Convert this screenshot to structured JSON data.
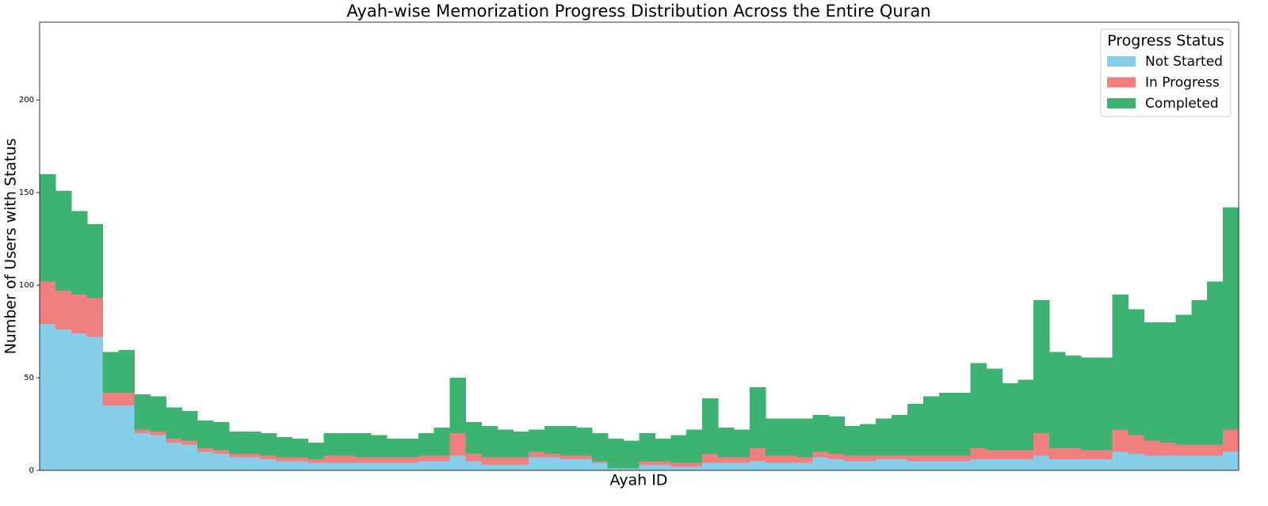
{
  "chart_data": {
    "type": "stacked_bar",
    "title": "Ayah-wise Memorization Progress Distribution Across the Entire Quran",
    "x_label": "Ayah ID",
    "y_label": "Number of Users with Status",
    "categories": [
      null,
      null,
      null,
      null,
      null,
      null,
      null,
      null,
      null,
      null,
      null,
      null,
      null,
      null,
      null,
      null,
      null,
      null,
      null,
      null,
      null,
      null,
      null,
      null,
      null,
      null,
      null,
      null,
      null,
      null,
      null,
      null,
      null,
      null,
      null,
      null,
      null,
      null,
      null,
      null,
      null,
      null,
      null,
      null,
      null,
      null,
      null,
      null,
      null,
      null,
      null,
      null,
      null,
      null,
      null,
      null,
      null,
      null,
      null,
      null,
      null,
      null,
      null,
      null,
      null,
      null,
      null,
      null,
      null,
      null,
      null,
      null,
      null,
      null,
      null,
      null
    ],
    "series": [
      {
        "name": "Not Started",
        "color": "#87ceeb",
        "values": [
          79,
          76,
          74,
          72,
          35,
          35,
          20,
          19,
          15,
          14,
          10,
          9,
          7,
          7,
          6,
          5,
          5,
          4,
          4,
          4,
          4,
          4,
          4,
          4,
          5,
          5,
          8,
          5,
          3,
          3,
          3,
          7,
          7,
          6,
          6,
          4,
          1,
          1,
          3,
          3,
          2,
          2,
          4,
          4,
          4,
          5,
          4,
          4,
          4,
          7,
          6,
          5,
          5,
          6,
          6,
          5,
          5,
          5,
          5,
          6,
          6,
          6,
          6,
          8,
          6,
          6,
          6,
          6,
          10,
          9,
          8,
          8,
          8,
          8,
          8,
          10
        ]
      },
      {
        "name": "In Progress",
        "color": "#f08080",
        "values": [
          23,
          21,
          21,
          21,
          7,
          7,
          2,
          2,
          2,
          2,
          2,
          2,
          2,
          2,
          2,
          2,
          2,
          2,
          4,
          4,
          3,
          3,
          3,
          3,
          3,
          3,
          12,
          4,
          4,
          4,
          4,
          3,
          2,
          2,
          2,
          1,
          0,
          0,
          2,
          2,
          2,
          2,
          5,
          3,
          3,
          7,
          4,
          4,
          3,
          3,
          3,
          3,
          3,
          2,
          2,
          3,
          3,
          3,
          3,
          6,
          5,
          5,
          5,
          12,
          6,
          6,
          5,
          5,
          12,
          10,
          8,
          7,
          6,
          6,
          6,
          12
        ]
      },
      {
        "name": "Completed",
        "color": "#3cb371",
        "values": [
          58,
          54,
          45,
          40,
          22,
          23,
          19,
          19,
          17,
          16,
          15,
          15,
          12,
          12,
          12,
          11,
          10,
          9,
          12,
          12,
          13,
          12,
          10,
          10,
          12,
          15,
          30,
          17,
          17,
          15,
          14,
          12,
          15,
          16,
          15,
          15,
          16,
          15,
          15,
          12,
          15,
          18,
          30,
          16,
          15,
          33,
          20,
          20,
          21,
          20,
          20,
          16,
          17,
          20,
          22,
          28,
          32,
          34,
          34,
          46,
          44,
          36,
          38,
          72,
          52,
          50,
          50,
          50,
          73,
          68,
          64,
          65,
          70,
          78,
          88,
          120
        ]
      }
    ],
    "ylim": [
      0,
      242
    ],
    "yticks": [
      0,
      50,
      100,
      150,
      200
    ],
    "legend_title": "Progress Status",
    "legend_loc": "upper right"
  }
}
